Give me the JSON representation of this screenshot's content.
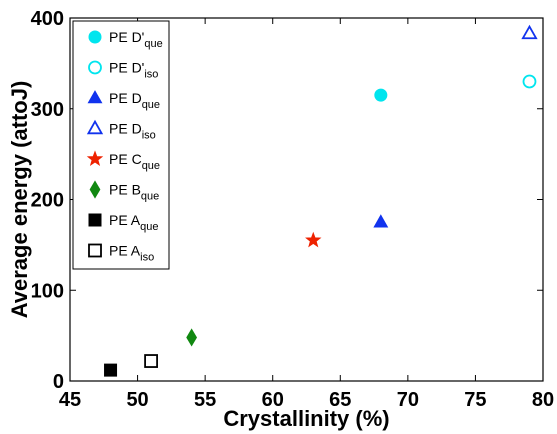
{
  "chart_data": {
    "type": "scatter",
    "title": "",
    "xlabel": "Crystallinity (%)",
    "ylabel": "Average energy (attoJ)",
    "xlim": [
      45,
      80
    ],
    "ylim": [
      0,
      400
    ],
    "xticks": [
      45,
      50,
      55,
      60,
      65,
      70,
      75,
      80
    ],
    "yticks": [
      0,
      100,
      200,
      300,
      400
    ],
    "grid": false,
    "legend_position": "top-left",
    "series": [
      {
        "name": "PE D'",
        "sub": "que",
        "marker": "circle",
        "filled": true,
        "color": "#00e5ee",
        "points": [
          {
            "x": 68,
            "y": 315
          }
        ]
      },
      {
        "name": "PE D'",
        "sub": "iso",
        "marker": "circle",
        "filled": false,
        "color": "#00e5ee",
        "points": [
          {
            "x": 79,
            "y": 330
          }
        ]
      },
      {
        "name": "PE D",
        "sub": "que",
        "marker": "triangle",
        "filled": true,
        "color": "#1133ee",
        "points": [
          {
            "x": 68,
            "y": 175
          }
        ]
      },
      {
        "name": "PE D",
        "sub": "iso",
        "marker": "triangle",
        "filled": false,
        "color": "#1133ee",
        "points": [
          {
            "x": 79,
            "y": 383
          }
        ]
      },
      {
        "name": "PE C",
        "sub": "que",
        "marker": "star",
        "filled": true,
        "color": "#ee2200",
        "points": [
          {
            "x": 63,
            "y": 155
          }
        ]
      },
      {
        "name": "PE B",
        "sub": "que",
        "marker": "diamond",
        "filled": true,
        "color": "#118811",
        "points": [
          {
            "x": 54,
            "y": 48
          }
        ]
      },
      {
        "name": "PE A",
        "sub": "que",
        "marker": "square",
        "filled": true,
        "color": "#000000",
        "points": [
          {
            "x": 48,
            "y": 12
          }
        ]
      },
      {
        "name": "PE A",
        "sub": "iso",
        "marker": "square",
        "filled": false,
        "color": "#000000",
        "points": [
          {
            "x": 51,
            "y": 22
          }
        ]
      }
    ]
  }
}
